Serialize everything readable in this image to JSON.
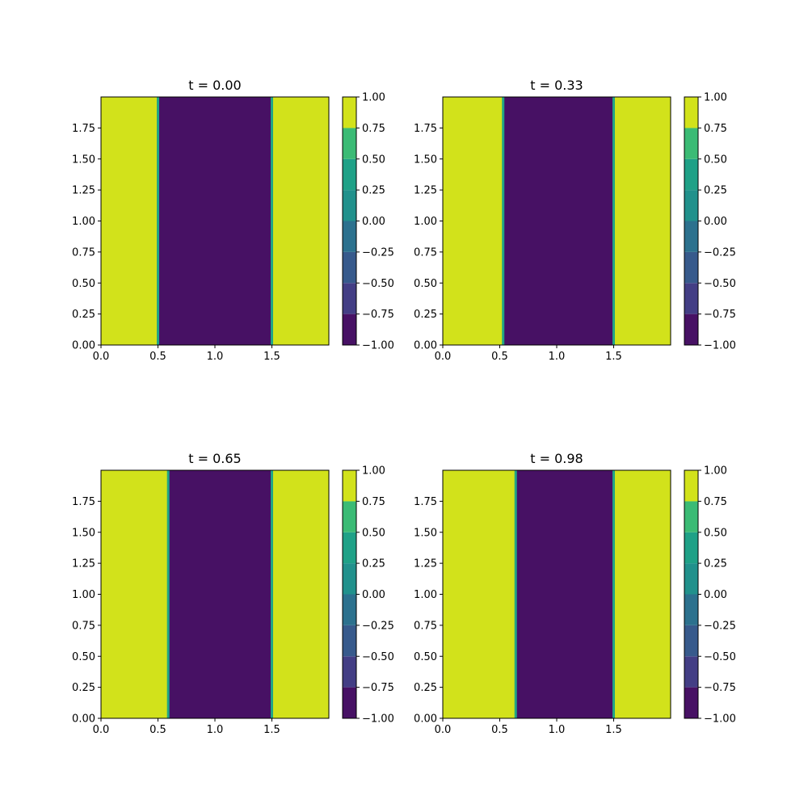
{
  "chart_data": [
    {
      "type": "heatmap",
      "title": "t = 0.00",
      "xlim": [
        0,
        2
      ],
      "ylim": [
        0,
        2
      ],
      "xticks": [
        "0.0",
        "0.5",
        "1.0",
        "1.5"
      ],
      "yticks": [
        "0.00",
        "0.25",
        "0.50",
        "0.75",
        "1.00",
        "1.25",
        "1.50",
        "1.75"
      ],
      "xtick_values": [
        0,
        0.5,
        1.0,
        1.5
      ],
      "ytick_values": [
        0,
        0.25,
        0.5,
        0.75,
        1.0,
        1.25,
        1.5,
        1.75
      ],
      "regions": [
        {
          "x_from": 0,
          "x_to": 0.5,
          "value": 1.0
        },
        {
          "x_from": 0.5,
          "x_to": 1.5,
          "value": -1.0
        },
        {
          "x_from": 1.5,
          "x_to": 2.0,
          "value": 1.0
        }
      ],
      "colorbar": {
        "levels": [
          -1.0,
          -0.75,
          -0.5,
          -0.25,
          0.0,
          0.25,
          0.5,
          0.75,
          1.0
        ],
        "labels": [
          "−1.00",
          "−0.75",
          "−0.50",
          "−0.25",
          "0.00",
          "0.25",
          "0.50",
          "0.75",
          "1.00"
        ]
      }
    },
    {
      "type": "heatmap",
      "title": "t = 0.33",
      "xlim": [
        0,
        2
      ],
      "ylim": [
        0,
        2
      ],
      "xticks": [
        "0.0",
        "0.5",
        "1.0",
        "1.5"
      ],
      "yticks": [
        "0.00",
        "0.25",
        "0.50",
        "0.75",
        "1.00",
        "1.25",
        "1.50",
        "1.75"
      ],
      "xtick_values": [
        0,
        0.5,
        1.0,
        1.5
      ],
      "ytick_values": [
        0,
        0.25,
        0.5,
        0.75,
        1.0,
        1.25,
        1.5,
        1.75
      ],
      "regions": [
        {
          "x_from": 0,
          "x_to": 0.53,
          "value": 1.0
        },
        {
          "x_from": 0.53,
          "x_to": 1.5,
          "value": -1.0
        },
        {
          "x_from": 1.5,
          "x_to": 2.0,
          "value": 1.0
        }
      ],
      "colorbar": {
        "levels": [
          -1.0,
          -0.75,
          -0.5,
          -0.25,
          0.0,
          0.25,
          0.5,
          0.75,
          1.0
        ],
        "labels": [
          "−1.00",
          "−0.75",
          "−0.50",
          "−0.25",
          "0.00",
          "0.25",
          "0.50",
          "0.75",
          "1.00"
        ]
      }
    },
    {
      "type": "heatmap",
      "title": "t = 0.65",
      "xlim": [
        0,
        2
      ],
      "ylim": [
        0,
        2
      ],
      "xticks": [
        "0.0",
        "0.5",
        "1.0",
        "1.5"
      ],
      "yticks": [
        "0.00",
        "0.25",
        "0.50",
        "0.75",
        "1.00",
        "1.25",
        "1.50",
        "1.75"
      ],
      "xtick_values": [
        0,
        0.5,
        1.0,
        1.5
      ],
      "ytick_values": [
        0,
        0.25,
        0.5,
        0.75,
        1.0,
        1.25,
        1.5,
        1.75
      ],
      "regions": [
        {
          "x_from": 0,
          "x_to": 0.59,
          "value": 1.0
        },
        {
          "x_from": 0.59,
          "x_to": 1.5,
          "value": -1.0
        },
        {
          "x_from": 1.5,
          "x_to": 2.0,
          "value": 1.0
        }
      ],
      "colorbar": {
        "levels": [
          -1.0,
          -0.75,
          -0.5,
          -0.25,
          0.0,
          0.25,
          0.5,
          0.75,
          1.0
        ],
        "labels": [
          "−1.00",
          "−0.75",
          "−0.50",
          "−0.25",
          "0.00",
          "0.25",
          "0.50",
          "0.75",
          "1.00"
        ]
      }
    },
    {
      "type": "heatmap",
      "title": "t = 0.98",
      "xlim": [
        0,
        2
      ],
      "ylim": [
        0,
        2
      ],
      "xticks": [
        "0.0",
        "0.5",
        "1.0",
        "1.5"
      ],
      "yticks": [
        "0.00",
        "0.25",
        "0.50",
        "0.75",
        "1.00",
        "1.25",
        "1.50",
        "1.75"
      ],
      "xtick_values": [
        0,
        0.5,
        1.0,
        1.5
      ],
      "ytick_values": [
        0,
        0.25,
        0.5,
        0.75,
        1.0,
        1.25,
        1.5,
        1.75
      ],
      "regions": [
        {
          "x_from": 0,
          "x_to": 0.64,
          "value": 1.0
        },
        {
          "x_from": 0.64,
          "x_to": 1.5,
          "value": -1.0
        },
        {
          "x_from": 1.5,
          "x_to": 2.0,
          "value": 1.0
        }
      ],
      "colorbar": {
        "levels": [
          -1.0,
          -0.75,
          -0.5,
          -0.25,
          0.0,
          0.25,
          0.5,
          0.75,
          1.0
        ],
        "labels": [
          "−1.00",
          "−0.75",
          "−0.50",
          "−0.25",
          "0.00",
          "0.25",
          "0.50",
          "0.75",
          "1.00"
        ]
      }
    }
  ],
  "colors": {
    "colorbar_bands": [
      "#471164",
      "#433e85",
      "#375a8c",
      "#2c718e",
      "#21918c",
      "#1fa187",
      "#3bbb75",
      "#7ad151",
      "#d2e21b"
    ],
    "high": "#d2e21b",
    "low": "#471164",
    "interface": "#21a585"
  }
}
